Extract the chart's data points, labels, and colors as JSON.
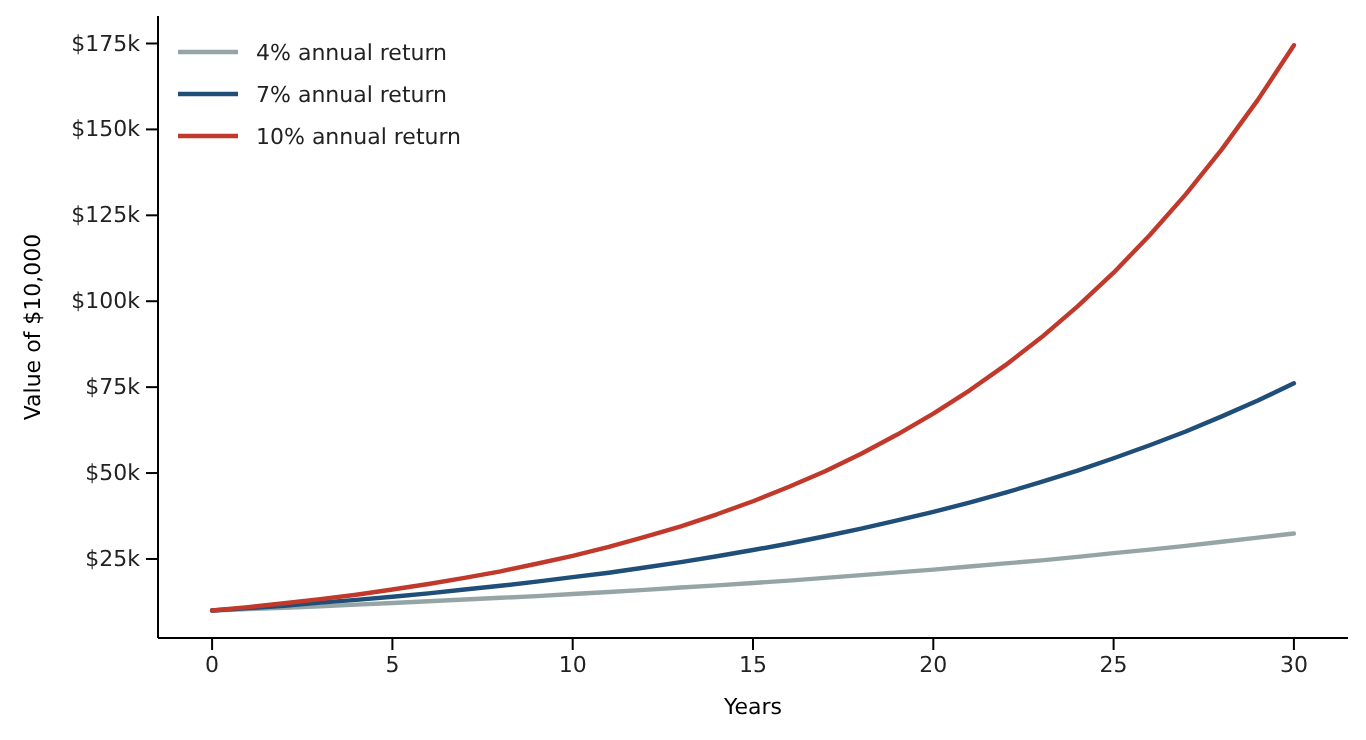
{
  "chart_data": {
    "type": "line",
    "xlabel": "Years",
    "ylabel": "Value of $10,000",
    "x": [
      0,
      1,
      2,
      3,
      4,
      5,
      6,
      7,
      8,
      9,
      10,
      11,
      12,
      13,
      14,
      15,
      16,
      17,
      18,
      19,
      20,
      21,
      22,
      23,
      24,
      25,
      26,
      27,
      28,
      29,
      30
    ],
    "series": [
      {
        "name": "4% annual return",
        "color": "#95a5a6",
        "values": [
          10000,
          10400,
          10800,
          11200,
          11700,
          12200,
          12700,
          13200,
          13700,
          14200,
          14800,
          15400,
          16000,
          16700,
          17300,
          18000,
          18700,
          19500,
          20300,
          21100,
          21900,
          22800,
          23700,
          24600,
          25600,
          26700,
          27700,
          28800,
          30000,
          31200,
          32400
        ]
      },
      {
        "name": "7% annual return",
        "color": "#1f4e79",
        "values": [
          10000,
          10700,
          11400,
          12300,
          13100,
          14000,
          15000,
          16100,
          17200,
          18400,
          19700,
          21000,
          22500,
          24100,
          25800,
          27600,
          29500,
          31600,
          33800,
          36200,
          38700,
          41400,
          44300,
          47400,
          50700,
          54300,
          58100,
          62100,
          66500,
          71100,
          76100
        ]
      },
      {
        "name": "10% annual return",
        "color": "#c0392b",
        "values": [
          10000,
          11000,
          12100,
          13300,
          14600,
          16100,
          17700,
          19500,
          21400,
          23600,
          25900,
          28500,
          31400,
          34500,
          38000,
          41800,
          46000,
          50500,
          55600,
          61200,
          67300,
          74000,
          81400,
          89500,
          98500,
          108300,
          119200,
          131100,
          144200,
          158600,
          174500
        ]
      }
    ],
    "xlim": [
      -1.5,
      31.5
    ],
    "xticks": [
      0,
      5,
      10,
      15,
      20,
      25,
      30
    ],
    "ylim": [
      2000,
      183000
    ],
    "yticks": [
      {
        "value": 25000,
        "label": "$25k"
      },
      {
        "value": 50000,
        "label": "$50k"
      },
      {
        "value": 75000,
        "label": "$75k"
      },
      {
        "value": 100000,
        "label": "$100k"
      },
      {
        "value": 125000,
        "label": "$125k"
      },
      {
        "value": 150000,
        "label": "$150k"
      },
      {
        "value": 175000,
        "label": "$175k"
      }
    ],
    "grid": false,
    "legend": "top left",
    "marker": "none",
    "line_style": "solid"
  }
}
